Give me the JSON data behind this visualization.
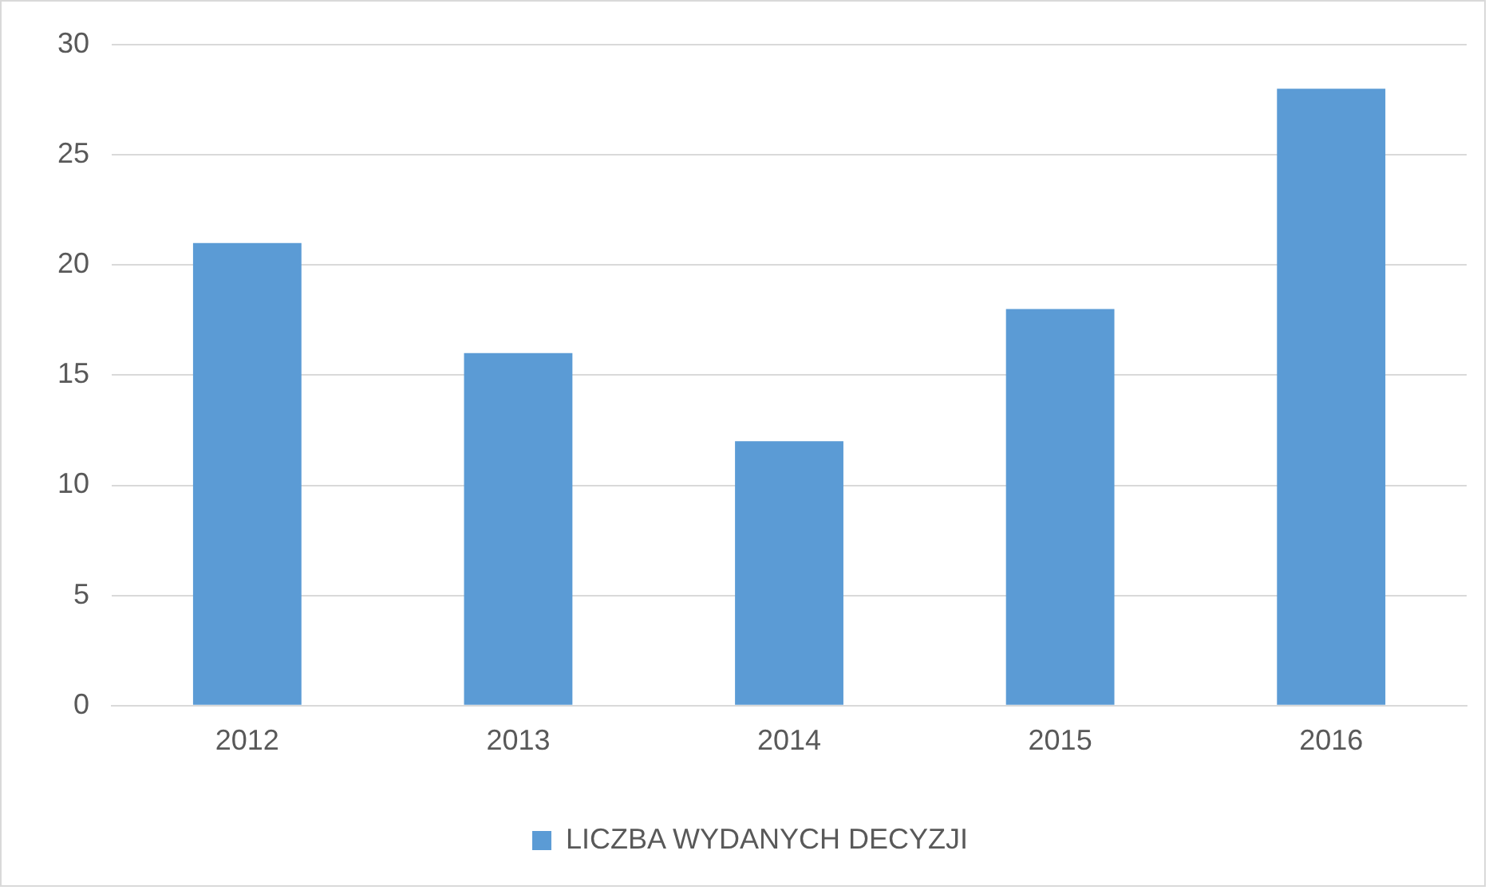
{
  "chart_data": {
    "type": "bar",
    "categories": [
      "2012",
      "2013",
      "2014",
      "2015",
      "2016"
    ],
    "series": [
      {
        "name": "LICZBA WYDANYCH DECYZJI",
        "color": "#5b9bd5",
        "values": [
          21,
          16,
          12,
          18,
          28
        ]
      }
    ],
    "ylim": [
      0,
      30
    ],
    "yticks": [
      0,
      5,
      10,
      15,
      20,
      25,
      30
    ],
    "grid": "y",
    "legend": "bottom"
  }
}
